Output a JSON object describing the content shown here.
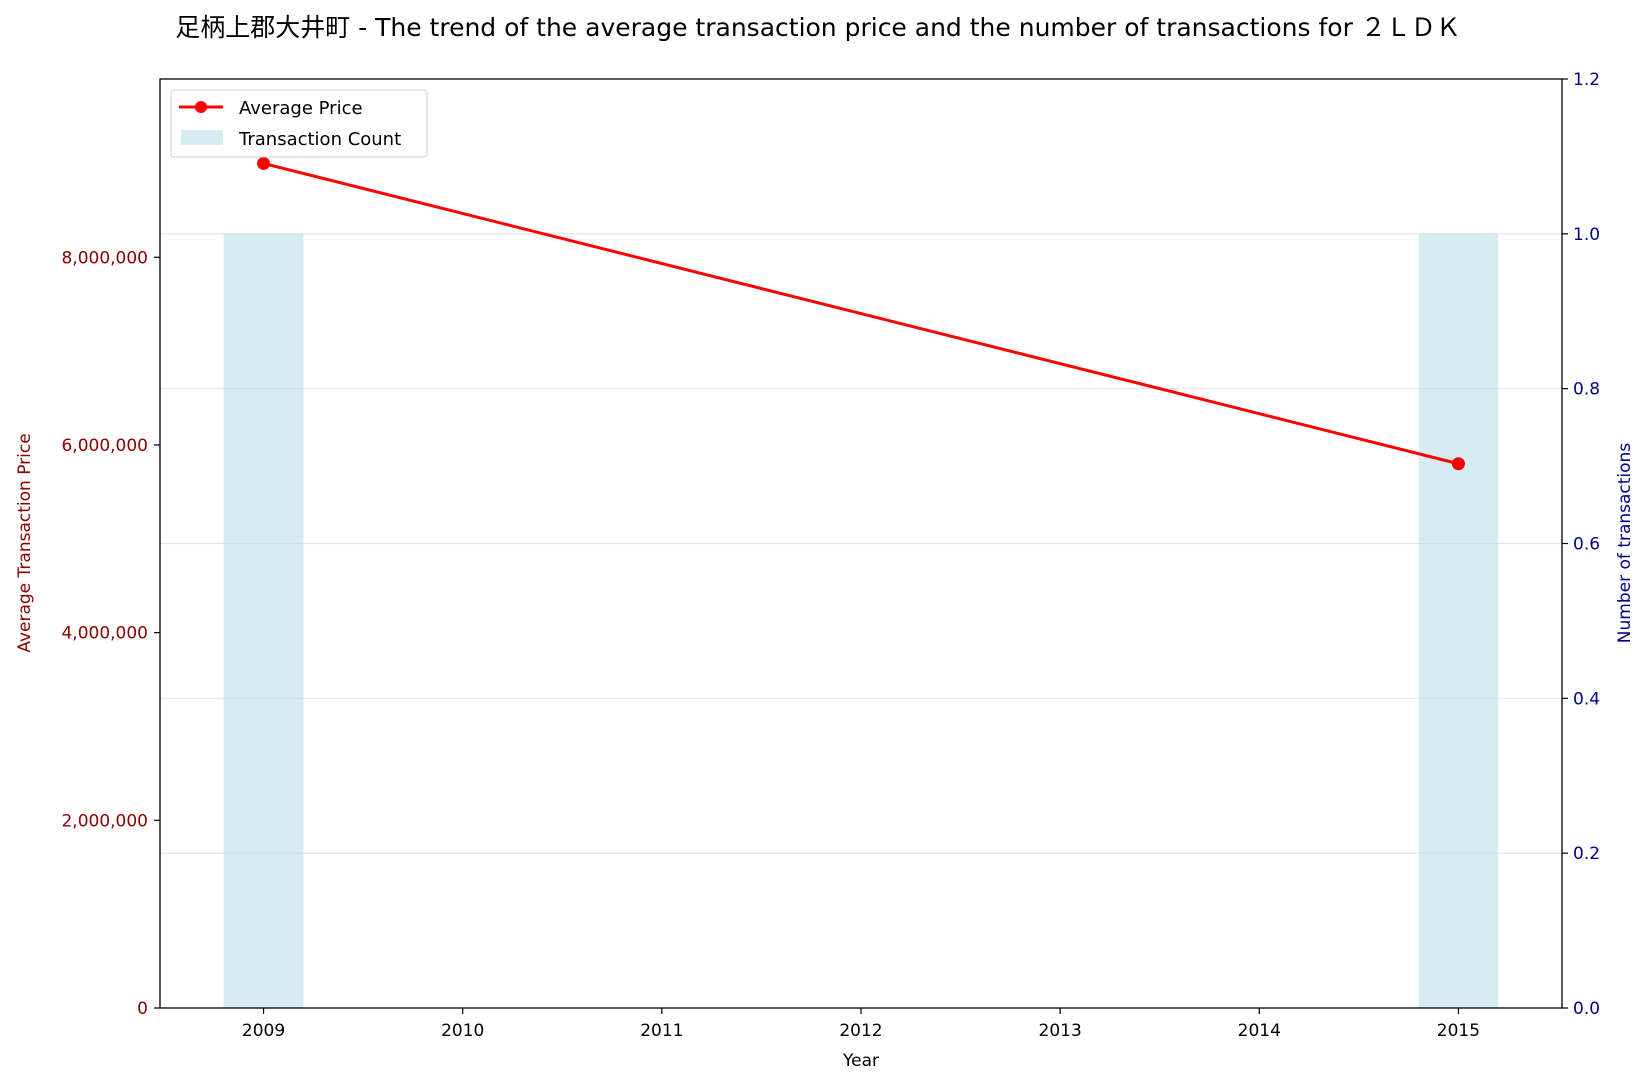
{
  "chart_data": {
    "type": "line+bar",
    "title": "足柄上郡大井町 - The trend of the average transaction price and the number of transactions for ２ＬＤＫ",
    "xlabel": "Year",
    "ylabel_left": "Average Transaction Price",
    "ylabel_right": "Number of transactions",
    "x_ticks": [
      "2009",
      "2010",
      "2011",
      "2012",
      "2013",
      "2014",
      "2015"
    ],
    "xlim": [
      2008.48,
      2015.52
    ],
    "ylim_left": [
      0,
      9900000
    ],
    "ylim_right": [
      0,
      1.2
    ],
    "y_ticks_left": [
      "0",
      "2,000,000",
      "4,000,000",
      "6,000,000",
      "8,000,000"
    ],
    "y_ticks_right": [
      "0.0",
      "0.2",
      "0.4",
      "0.6",
      "0.8",
      "1.0",
      "1.2"
    ],
    "grid": "horizontal (right axis)",
    "legend_position": "top-left",
    "series": [
      {
        "name": "Average Price",
        "type": "line",
        "axis": "left",
        "color": "#ff0000",
        "marker": "circle",
        "x": [
          2009,
          2015
        ],
        "values": [
          9000000,
          5800000
        ]
      },
      {
        "name": "Transaction Count",
        "type": "bar",
        "axis": "right",
        "color": "#add8e6",
        "x": [
          2009,
          2015
        ],
        "values": [
          1,
          1
        ]
      }
    ]
  }
}
